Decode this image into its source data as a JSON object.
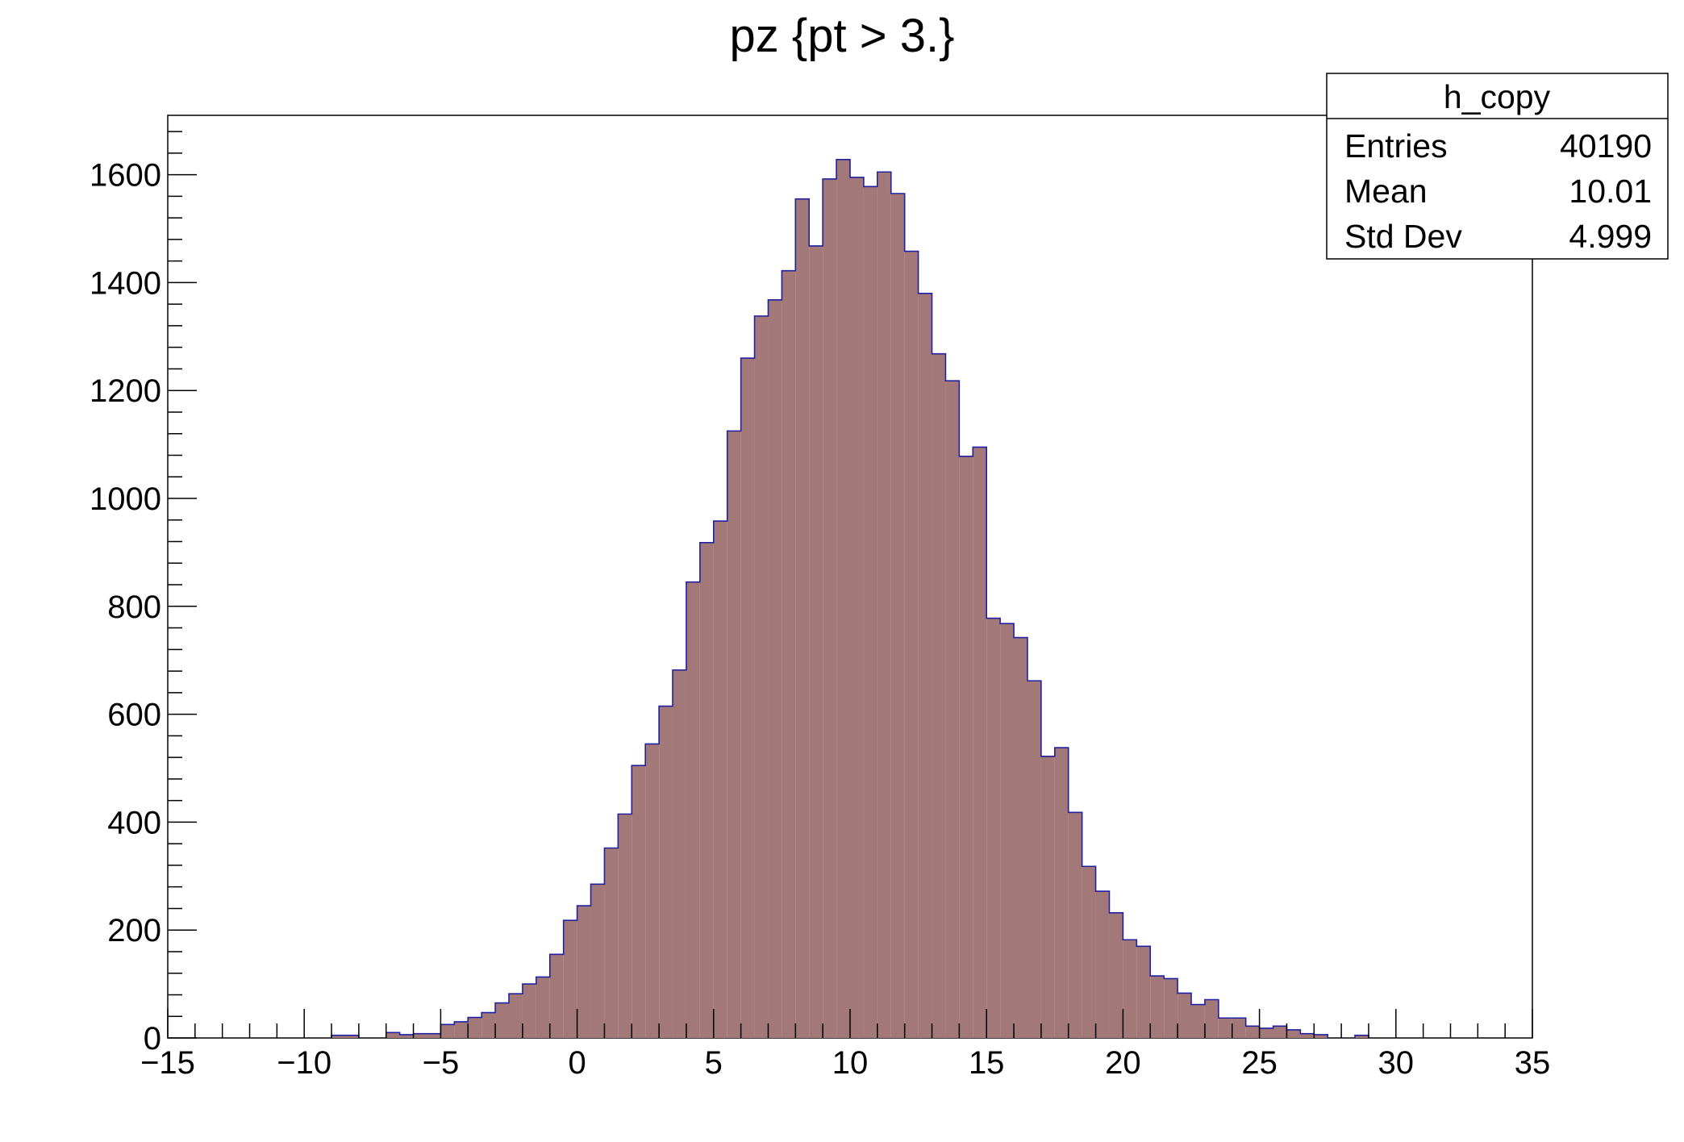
{
  "chart_data": {
    "type": "bar",
    "title": "pz {pt > 3.}",
    "xlabel": "",
    "ylabel": "",
    "xlim": [
      -15,
      35
    ],
    "ylim": [
      0,
      1710
    ],
    "bin_width": 0.5,
    "x": [
      -8.75,
      -8.25,
      -6.75,
      -6.25,
      -5.75,
      -5.25,
      -4.75,
      -4.25,
      -3.75,
      -3.25,
      -2.75,
      -2.25,
      -1.75,
      -1.25,
      -0.75,
      -0.25,
      0.25,
      0.75,
      1.25,
      1.75,
      2.25,
      2.75,
      3.25,
      3.75,
      4.25,
      4.75,
      5.25,
      5.75,
      6.25,
      6.75,
      7.25,
      7.75,
      8.25,
      8.75,
      9.25,
      9.75,
      10.25,
      10.75,
      11.25,
      11.75,
      12.25,
      12.75,
      13.25,
      13.75,
      14.25,
      14.75,
      15.25,
      15.75,
      16.25,
      16.75,
      17.25,
      17.75,
      18.25,
      18.75,
      19.25,
      19.75,
      20.25,
      20.75,
      21.25,
      21.75,
      22.25,
      22.75,
      23.25,
      23.75,
      24.25,
      24.75,
      25.25,
      25.75,
      26.25,
      26.75,
      27.25,
      28.75
    ],
    "values": [
      5,
      5,
      10,
      6,
      8,
      8,
      25,
      30,
      38,
      47,
      65,
      82,
      100,
      113,
      155,
      218,
      245,
      285,
      352,
      415,
      505,
      545,
      615,
      682,
      845,
      918,
      958,
      1125,
      1260,
      1338,
      1368,
      1422,
      1555,
      1468,
      1592,
      1628,
      1595,
      1578,
      1605,
      1565,
      1458,
      1380,
      1268,
      1218,
      1078,
      1095,
      778,
      768,
      742,
      662,
      522,
      538,
      418,
      318,
      272,
      232,
      182,
      170,
      115,
      110,
      83,
      62,
      71,
      37,
      37,
      22,
      18,
      22,
      15,
      8,
      6,
      5
    ],
    "x_ticks": [
      "−15",
      "−10",
      "−5",
      "0",
      "5",
      "10",
      "15",
      "20",
      "25",
      "30",
      "35"
    ],
    "y_ticks": [
      "0",
      "200",
      "400",
      "600",
      "800",
      "1000",
      "1200",
      "1400",
      "1600"
    ],
    "fill_color": "#a37878",
    "line_color": "#2020a0",
    "grid": false,
    "legend": "none"
  },
  "stats": {
    "name": "h_copy",
    "rows": [
      {
        "label": "Entries",
        "value": "40190"
      },
      {
        "label": "Mean",
        "value": "10.01"
      },
      {
        "label": "Std Dev",
        "value": "4.999"
      }
    ]
  }
}
